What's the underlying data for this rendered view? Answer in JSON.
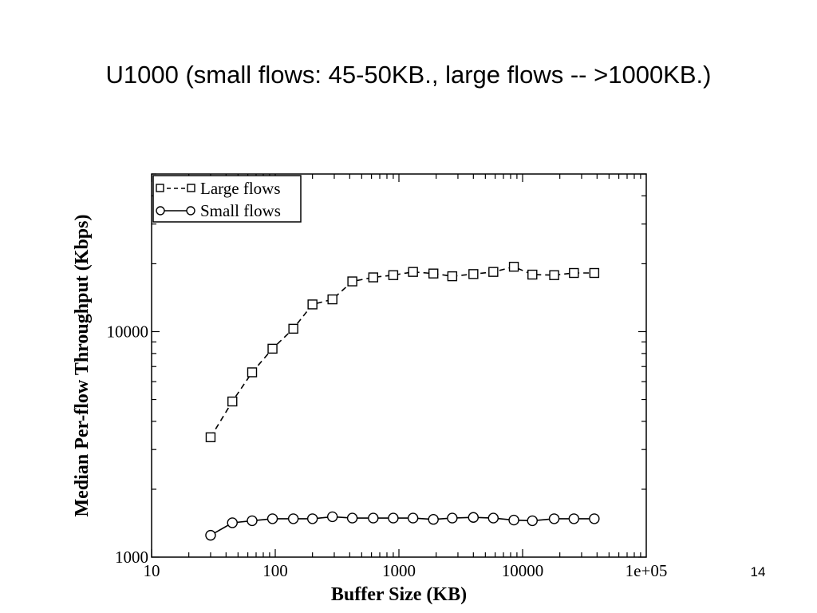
{
  "slide": {
    "title": "U1000 (small flows: 45-50KB., large flows -- >1000KB.)",
    "page_number": "14"
  },
  "chart_data": {
    "type": "line",
    "x_scale": "log",
    "y_scale": "log",
    "xlabel": "Buffer Size (KB)",
    "ylabel": "Median Per-flow Throughput (Kbps)",
    "xlim": [
      10,
      100000
    ],
    "ylim": [
      1000,
      50000
    ],
    "x_ticks": [
      {
        "value": 10,
        "label": "10"
      },
      {
        "value": 100,
        "label": "100"
      },
      {
        "value": 1000,
        "label": "1000"
      },
      {
        "value": 10000,
        "label": "10000"
      },
      {
        "value": 100000,
        "label": "1e+05"
      }
    ],
    "y_ticks": [
      {
        "value": 1000,
        "label": "1000"
      },
      {
        "value": 10000,
        "label": "10000"
      }
    ],
    "legend_position": "top-left",
    "grid": false,
    "x": [
      30,
      45,
      65,
      95,
      140,
      200,
      290,
      420,
      620,
      900,
      1300,
      1900,
      2700,
      4000,
      5800,
      8500,
      12000,
      18000,
      26000,
      38000
    ],
    "series": [
      {
        "name": "Large flows",
        "marker": "square",
        "line_style": "dashed",
        "values": [
          3400,
          4900,
          6600,
          8400,
          10300,
          13200,
          13900,
          16700,
          17400,
          17800,
          18400,
          18100,
          17600,
          18000,
          18400,
          19400,
          17900,
          17800,
          18200,
          18200
        ]
      },
      {
        "name": "Small flows",
        "marker": "circle",
        "line_style": "solid",
        "values": [
          1250,
          1420,
          1450,
          1480,
          1480,
          1480,
          1510,
          1490,
          1490,
          1490,
          1490,
          1470,
          1490,
          1500,
          1490,
          1460,
          1450,
          1480,
          1480,
          1480
        ]
      }
    ]
  }
}
